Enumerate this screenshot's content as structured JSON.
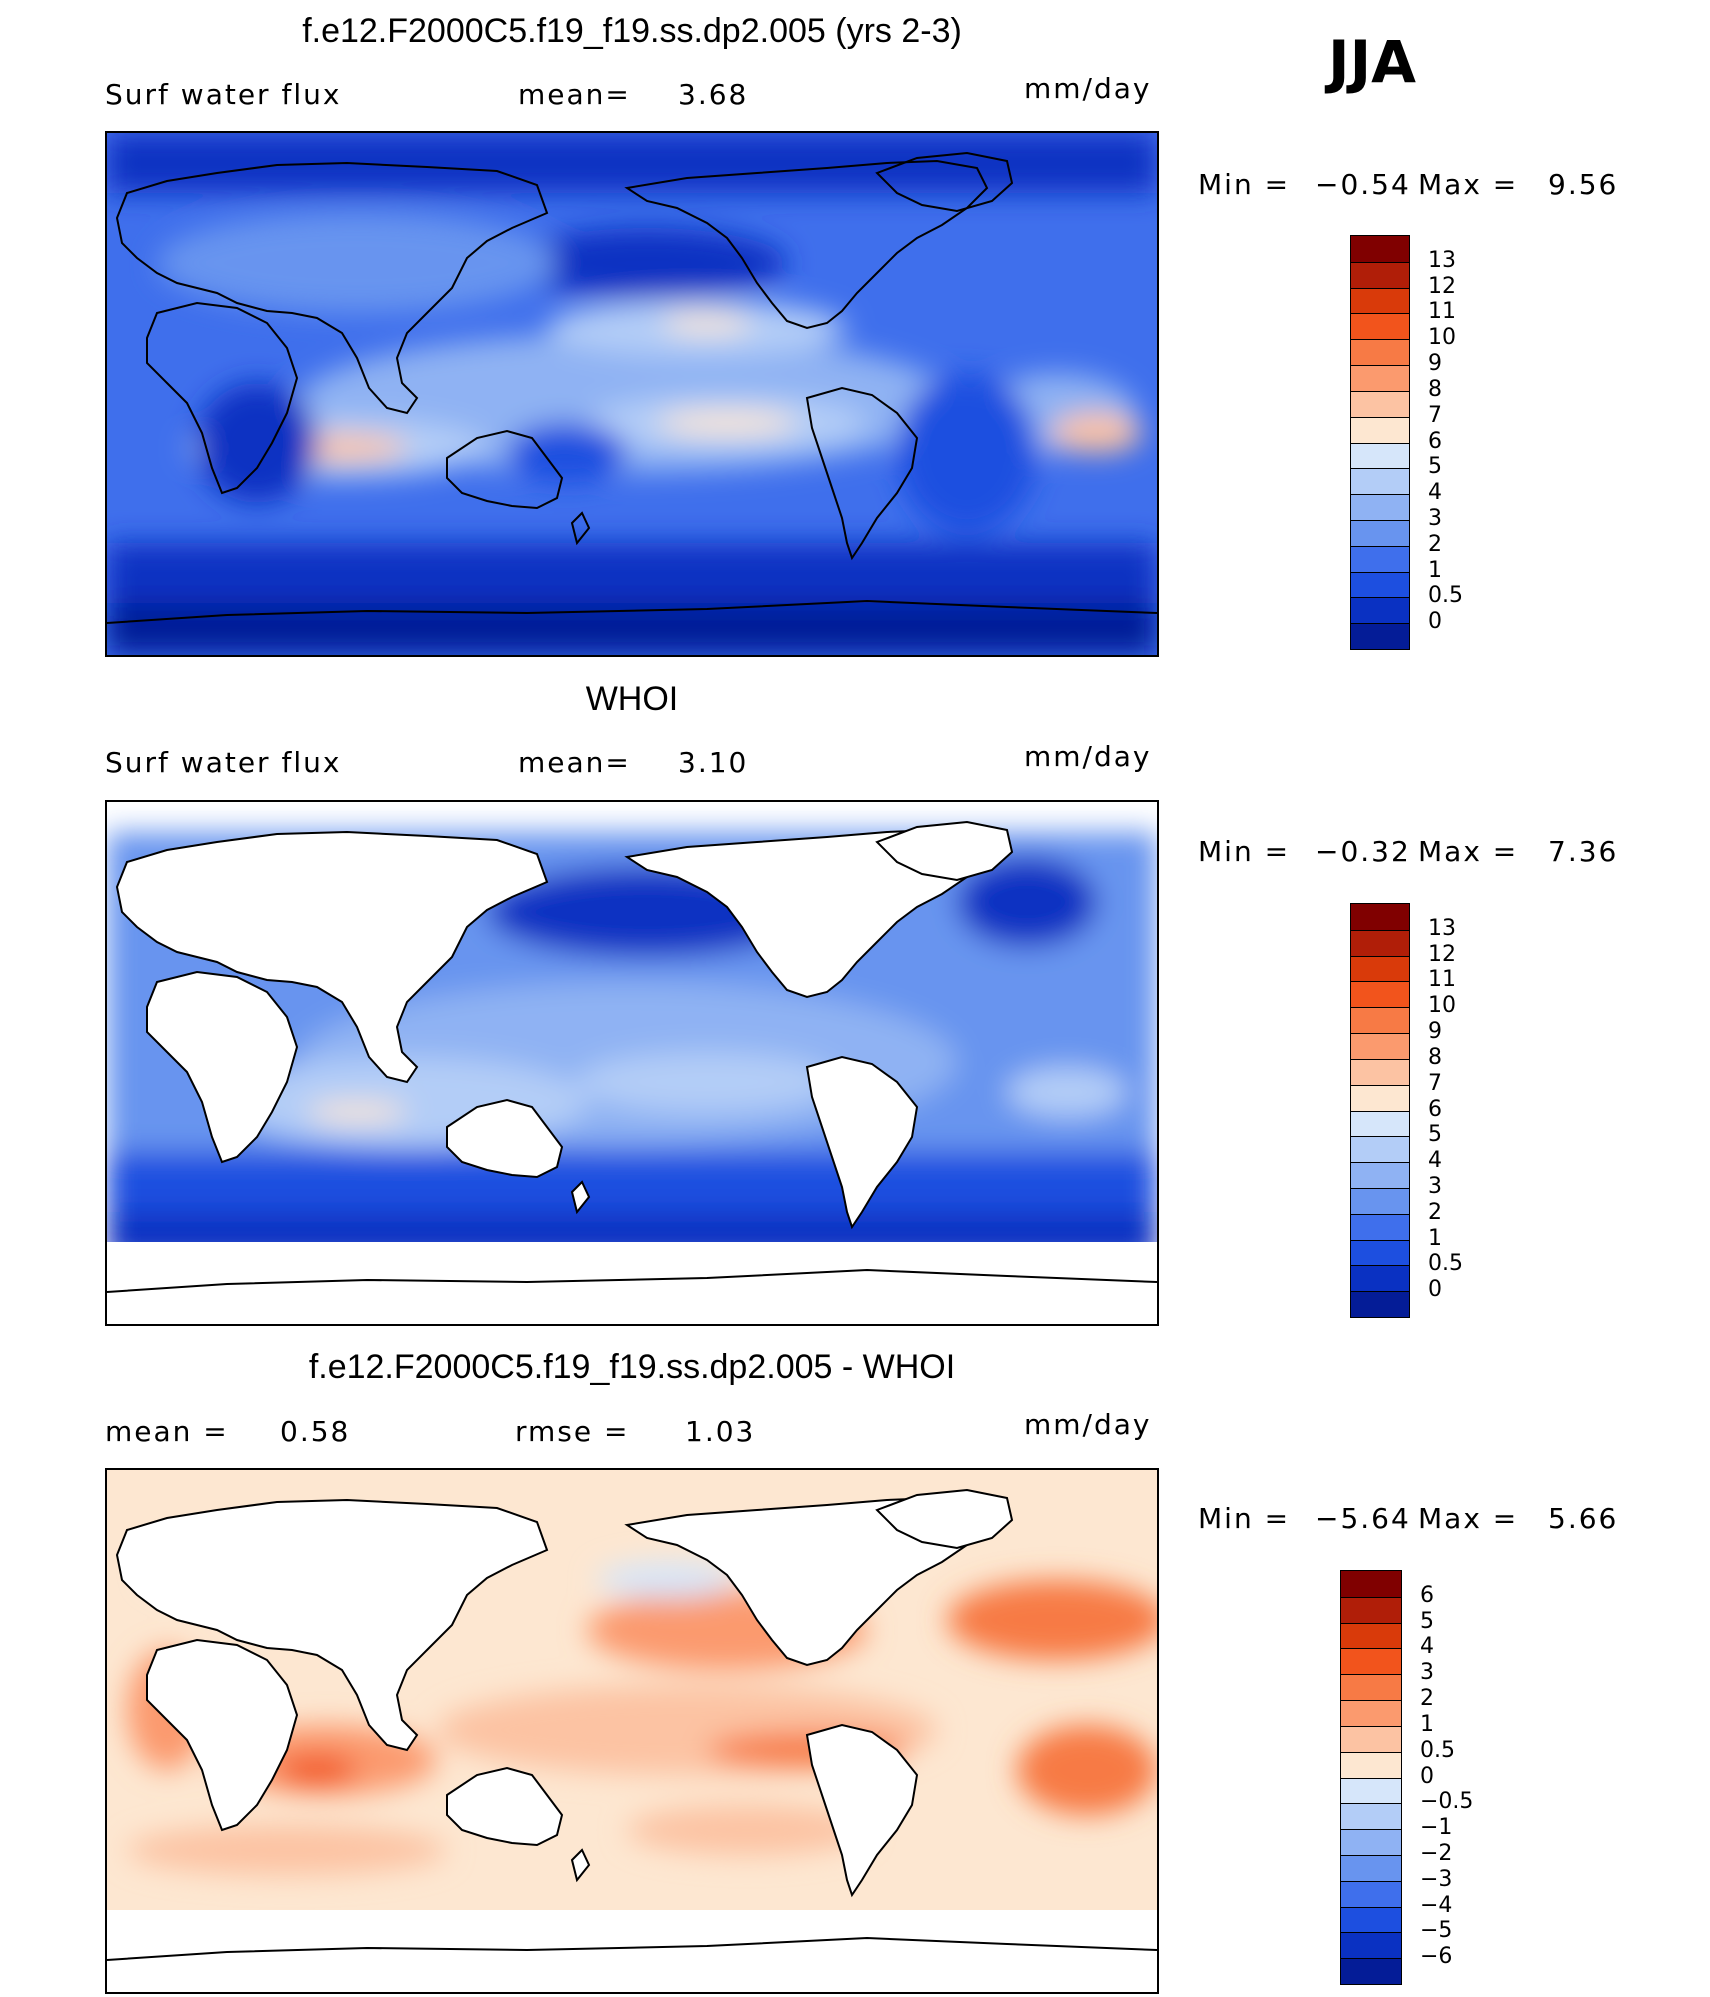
{
  "season": "JJA",
  "panels": [
    {
      "title": "f.e12.F2000C5.f19_f19.ss.dp2.005 (yrs 2-3)",
      "left_label": "Surf water flux",
      "mid_label": "mean=",
      "mid_value": "3.68",
      "right_value": "",
      "units": "mm/day",
      "min_label": "Min =",
      "min_value": "−0.54",
      "max_label": "Max =",
      "max_value": "9.56",
      "kind": "model",
      "colorbar": {
        "labels": [
          "13",
          "12",
          "11",
          "10",
          "9",
          "8",
          "7",
          "6",
          "5",
          "4",
          "3",
          "2",
          "1",
          "0.5",
          "0"
        ],
        "colors": [
          "#800000",
          "#b01e08",
          "#d93a0a",
          "#f2541c",
          "#f77a45",
          "#fb9a6e",
          "#fcc3a3",
          "#fde7d1",
          "#d6e6fa",
          "#b3cdf7",
          "#8fb2f3",
          "#6894ef",
          "#3f6fec",
          "#1d4fe0",
          "#0a31c2",
          "#041c97"
        ]
      }
    },
    {
      "title": "WHOI",
      "left_label": "Surf water flux",
      "mid_label": "mean=",
      "mid_value": "3.10",
      "right_value": "",
      "units": "mm/day",
      "min_label": "Min =",
      "min_value": "−0.32",
      "max_label": "Max =",
      "max_value": "7.36",
      "kind": "obs",
      "colorbar": {
        "labels": [
          "13",
          "12",
          "11",
          "10",
          "9",
          "8",
          "7",
          "6",
          "5",
          "4",
          "3",
          "2",
          "1",
          "0.5",
          "0"
        ],
        "colors": [
          "#800000",
          "#b01e08",
          "#d93a0a",
          "#f2541c",
          "#f77a45",
          "#fb9a6e",
          "#fcc3a3",
          "#fde7d1",
          "#d6e6fa",
          "#b3cdf7",
          "#8fb2f3",
          "#6894ef",
          "#3f6fec",
          "#1d4fe0",
          "#0a31c2",
          "#041c97"
        ]
      }
    },
    {
      "title": "f.e12.F2000C5.f19_f19.ss.dp2.005 - WHOI",
      "left_label": "mean =",
      "left_value": "0.58",
      "mid_label": "rmse =",
      "mid_value": "1.03",
      "units": "mm/day",
      "min_label": "Min =",
      "min_value": "−5.64",
      "max_label": "Max =",
      "max_value": "5.66",
      "kind": "diff",
      "colorbar": {
        "labels": [
          "6",
          "5",
          "4",
          "3",
          "2",
          "1",
          "0.5",
          "0",
          "−0.5",
          "−1",
          "−2",
          "−3",
          "−4",
          "−5",
          "−6"
        ],
        "colors": [
          "#800000",
          "#b01e08",
          "#d93a0a",
          "#f2541c",
          "#f77a45",
          "#fb9a6e",
          "#fcc3a3",
          "#fde7d1",
          "#d6e6fa",
          "#b3cdf7",
          "#8fb2f3",
          "#6894ef",
          "#3f6fec",
          "#1d4fe0",
          "#0a31c2",
          "#041c97"
        ]
      }
    }
  ]
}
